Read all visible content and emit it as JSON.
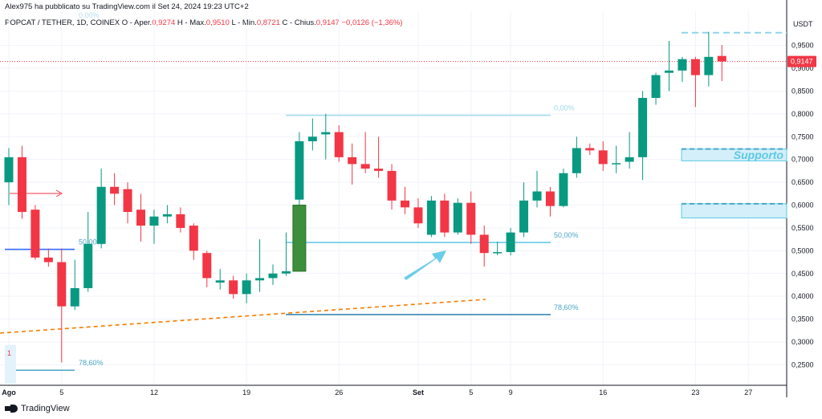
{
  "header": {
    "published": "Alex975 ha pubblicato su TradingView.com il Set 24, 2024 19:23 UTC+2",
    "symbol": "POPCAT / TETHER, 1D, COINEX",
    "open_label": "O - Aper.",
    "open": "0,9274",
    "high_label": "H - Max.",
    "high": "0,9510",
    "low_label": "L - Min.",
    "low": "0,8721",
    "close_label": "C - Chius.",
    "close": "0,9147",
    "change": "−0,0126 (−1,36%)"
  },
  "footer": {
    "brand": "TradingView"
  },
  "colors": {
    "up": "#089981",
    "down": "#f23645",
    "fib": "#4aa5c9",
    "support": "#5bc8e6",
    "trend": "#f57c00"
  },
  "chart_data": {
    "type": "candlestick",
    "title": "",
    "xlabel": "",
    "ylabel": "",
    "currency_label": "USDT",
    "last_price_label": "0,9147",
    "ylim": [
      0.205,
      1.025
    ],
    "x_ticks": [
      {
        "day": 0,
        "label": "Ago"
      },
      {
        "day": 4,
        "label": "5"
      },
      {
        "day": 11,
        "label": "12"
      },
      {
        "day": 18,
        "label": "19"
      },
      {
        "day": 25,
        "label": "26"
      },
      {
        "day": 31,
        "label": "Set"
      },
      {
        "day": 35,
        "label": "5"
      },
      {
        "day": 38,
        "label": "9"
      },
      {
        "day": 45,
        "label": "16"
      },
      {
        "day": 52,
        "label": "23"
      },
      {
        "day": 56,
        "label": "27"
      }
    ],
    "y_ticks": [
      "0,9500",
      "0,9000",
      "0,8500",
      "0,8000",
      "0,7500",
      "0,7000",
      "0,6500",
      "0,6000",
      "0,5500",
      "0,5000",
      "0,4500",
      "0,4000",
      "0,3500",
      "0,3000",
      "0,2500"
    ],
    "candles": [
      {
        "day": 0,
        "o": 0.65,
        "h": 0.725,
        "l": 0.6,
        "c": 0.705
      },
      {
        "day": 1,
        "o": 0.705,
        "h": 0.73,
        "l": 0.57,
        "c": 0.585
      },
      {
        "day": 2,
        "o": 0.59,
        "h": 0.6,
        "l": 0.48,
        "c": 0.485
      },
      {
        "day": 3,
        "o": 0.485,
        "h": 0.505,
        "l": 0.465,
        "c": 0.475
      },
      {
        "day": 4,
        "o": 0.475,
        "h": 0.505,
        "l": 0.255,
        "c": 0.378
      },
      {
        "day": 5,
        "o": 0.378,
        "h": 0.48,
        "l": 0.37,
        "c": 0.418
      },
      {
        "day": 6,
        "o": 0.418,
        "h": 0.585,
        "l": 0.41,
        "c": 0.515
      },
      {
        "day": 7,
        "o": 0.515,
        "h": 0.68,
        "l": 0.505,
        "c": 0.64
      },
      {
        "day": 8,
        "o": 0.64,
        "h": 0.67,
        "l": 0.6,
        "c": 0.625
      },
      {
        "day": 9,
        "o": 0.635,
        "h": 0.65,
        "l": 0.56,
        "c": 0.585
      },
      {
        "day": 10,
        "o": 0.59,
        "h": 0.625,
        "l": 0.52,
        "c": 0.555
      },
      {
        "day": 11,
        "o": 0.555,
        "h": 0.59,
        "l": 0.515,
        "c": 0.575
      },
      {
        "day": 12,
        "o": 0.575,
        "h": 0.6,
        "l": 0.56,
        "c": 0.58
      },
      {
        "day": 13,
        "o": 0.58,
        "h": 0.595,
        "l": 0.54,
        "c": 0.55
      },
      {
        "day": 14,
        "o": 0.555,
        "h": 0.56,
        "l": 0.48,
        "c": 0.5
      },
      {
        "day": 15,
        "o": 0.495,
        "h": 0.5,
        "l": 0.42,
        "c": 0.44
      },
      {
        "day": 16,
        "o": 0.43,
        "h": 0.46,
        "l": 0.415,
        "c": 0.435
      },
      {
        "day": 17,
        "o": 0.435,
        "h": 0.445,
        "l": 0.395,
        "c": 0.405
      },
      {
        "day": 18,
        "o": 0.405,
        "h": 0.45,
        "l": 0.385,
        "c": 0.435
      },
      {
        "day": 19,
        "o": 0.435,
        "h": 0.525,
        "l": 0.41,
        "c": 0.44
      },
      {
        "day": 20,
        "o": 0.44,
        "h": 0.47,
        "l": 0.425,
        "c": 0.45
      },
      {
        "day": 21,
        "o": 0.45,
        "h": 0.54,
        "l": 0.445,
        "c": 0.455
      },
      {
        "day": 22,
        "o": 0.612,
        "h": 0.76,
        "l": 0.6,
        "c": 0.74
      },
      {
        "day": 23,
        "o": 0.74,
        "h": 0.79,
        "l": 0.72,
        "c": 0.75
      },
      {
        "day": 24,
        "o": 0.755,
        "h": 0.8,
        "l": 0.7,
        "c": 0.76
      },
      {
        "day": 25,
        "o": 0.76,
        "h": 0.775,
        "l": 0.695,
        "c": 0.705
      },
      {
        "day": 26,
        "o": 0.705,
        "h": 0.735,
        "l": 0.645,
        "c": 0.69
      },
      {
        "day": 27,
        "o": 0.69,
        "h": 0.76,
        "l": 0.67,
        "c": 0.68
      },
      {
        "day": 28,
        "o": 0.68,
        "h": 0.75,
        "l": 0.66,
        "c": 0.675
      },
      {
        "day": 29,
        "o": 0.675,
        "h": 0.69,
        "l": 0.59,
        "c": 0.61
      },
      {
        "day": 30,
        "o": 0.61,
        "h": 0.64,
        "l": 0.58,
        "c": 0.595
      },
      {
        "day": 31,
        "o": 0.595,
        "h": 0.615,
        "l": 0.55,
        "c": 0.56
      },
      {
        "day": 32,
        "o": 0.535,
        "h": 0.62,
        "l": 0.53,
        "c": 0.61
      },
      {
        "day": 33,
        "o": 0.61,
        "h": 0.625,
        "l": 0.53,
        "c": 0.54
      },
      {
        "day": 34,
        "o": 0.54,
        "h": 0.615,
        "l": 0.535,
        "c": 0.605
      },
      {
        "day": 35,
        "o": 0.605,
        "h": 0.63,
        "l": 0.515,
        "c": 0.535
      },
      {
        "day": 36,
        "o": 0.535,
        "h": 0.555,
        "l": 0.465,
        "c": 0.495
      },
      {
        "day": 37,
        "o": 0.495,
        "h": 0.52,
        "l": 0.49,
        "c": 0.497
      },
      {
        "day": 38,
        "o": 0.497,
        "h": 0.55,
        "l": 0.49,
        "c": 0.54
      },
      {
        "day": 39,
        "o": 0.54,
        "h": 0.65,
        "l": 0.53,
        "c": 0.61
      },
      {
        "day": 40,
        "o": 0.61,
        "h": 0.675,
        "l": 0.595,
        "c": 0.63
      },
      {
        "day": 41,
        "o": 0.63,
        "h": 0.64,
        "l": 0.575,
        "c": 0.598
      },
      {
        "day": 42,
        "o": 0.598,
        "h": 0.68,
        "l": 0.595,
        "c": 0.67
      },
      {
        "day": 43,
        "o": 0.67,
        "h": 0.75,
        "l": 0.66,
        "c": 0.725
      },
      {
        "day": 44,
        "o": 0.725,
        "h": 0.735,
        "l": 0.71,
        "c": 0.72
      },
      {
        "day": 45,
        "o": 0.72,
        "h": 0.74,
        "l": 0.675,
        "c": 0.69
      },
      {
        "day": 46,
        "o": 0.69,
        "h": 0.73,
        "l": 0.67,
        "c": 0.692
      },
      {
        "day": 47,
        "o": 0.695,
        "h": 0.76,
        "l": 0.68,
        "c": 0.705
      },
      {
        "day": 48,
        "o": 0.705,
        "h": 0.85,
        "l": 0.655,
        "c": 0.835
      },
      {
        "day": 49,
        "o": 0.835,
        "h": 0.89,
        "l": 0.82,
        "c": 0.885
      },
      {
        "day": 50,
        "o": 0.89,
        "h": 0.96,
        "l": 0.85,
        "c": 0.895
      },
      {
        "day": 51,
        "o": 0.895,
        "h": 0.925,
        "l": 0.87,
        "c": 0.92
      },
      {
        "day": 52,
        "o": 0.92,
        "h": 0.925,
        "l": 0.815,
        "c": 0.885
      },
      {
        "day": 53,
        "o": 0.885,
        "h": 0.98,
        "l": 0.86,
        "c": 0.925
      },
      {
        "day": 54,
        "o": 0.927,
        "h": 0.951,
        "l": 0.872,
        "c": 0.915
      }
    ],
    "highlight_candle": {
      "day": 22,
      "o": 0.455,
      "h": 0.6,
      "l": 0.455,
      "c": 0.6
    },
    "annotations": {
      "fib_left": [
        {
          "label": "0,00%",
          "price": 0.99
        },
        {
          "label": "50,00%",
          "price": 0.503
        },
        {
          "label": "78,60%",
          "price": 0.238
        }
      ],
      "fib_mid": [
        {
          "label": "0,00%",
          "price": 0.797
        },
        {
          "label": "50,00%",
          "price": 0.518
        },
        {
          "label": "78,60%",
          "price": 0.36
        }
      ],
      "support_label": "Supporto",
      "support_zones": [
        [
          0.697,
          0.723
        ],
        [
          0.572,
          0.603
        ]
      ],
      "resistance_dashed": 0.978,
      "small_marker": "1"
    }
  }
}
